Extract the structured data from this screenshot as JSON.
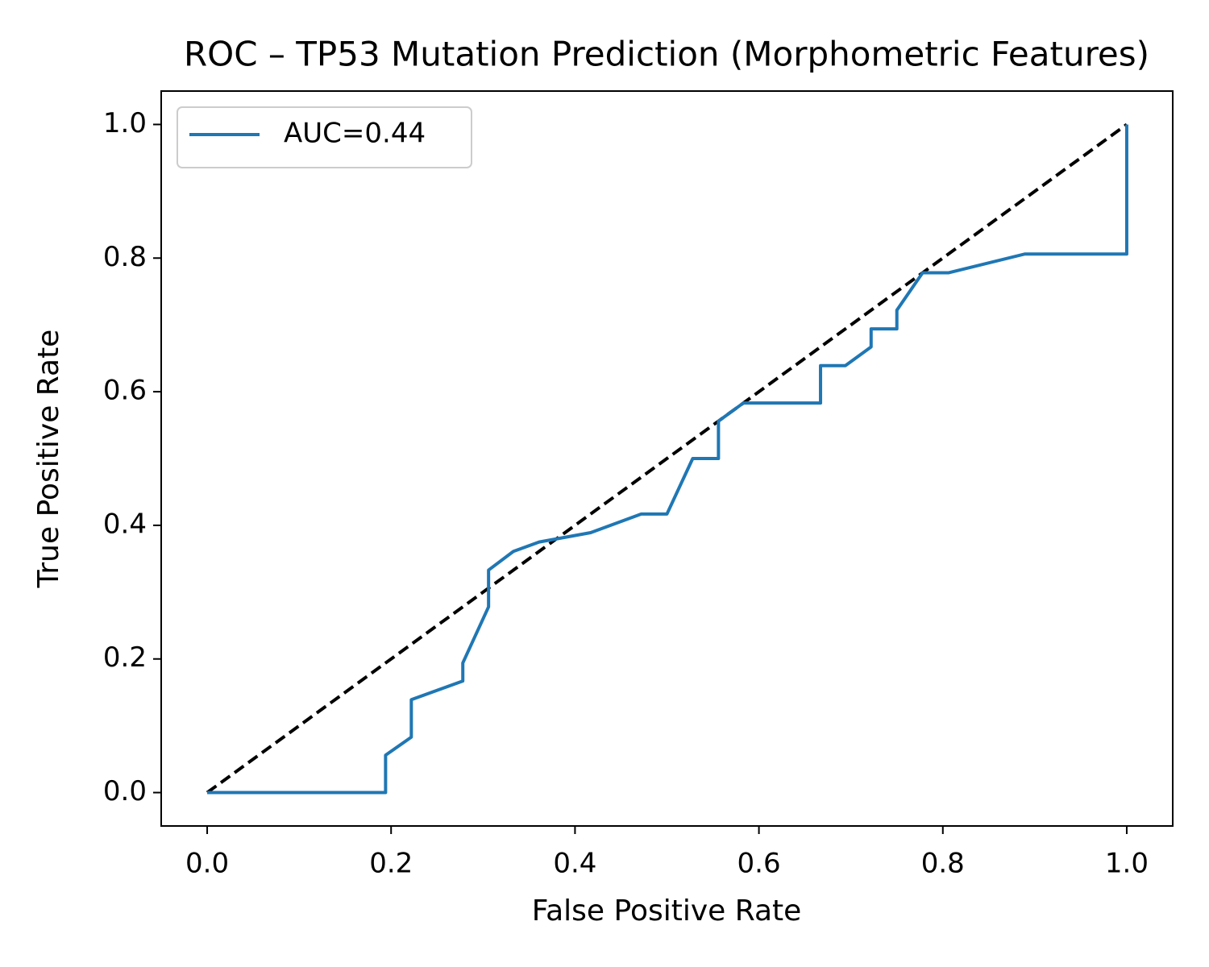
{
  "chart_data": {
    "type": "line",
    "title": "ROC – TP53 Mutation Prediction (Morphometric Features)",
    "x_label": "False Positive Rate",
    "y_label": "True Positive Rate",
    "xlim": [
      -0.05,
      1.05
    ],
    "ylim": [
      -0.05,
      1.05
    ],
    "xticks": [
      {
        "value": 0,
        "label": "0.0"
      },
      0.2,
      0.4,
      0.6,
      0.8,
      {
        "value": 1,
        "label": "1.0"
      }
    ],
    "yticks": [
      {
        "value": 0,
        "label": "0.0"
      },
      0.2,
      0.4,
      0.6,
      0.8,
      {
        "value": 1,
        "label": "1.0"
      }
    ],
    "grid": false,
    "legend": "upper left",
    "series": [
      {
        "name": "AUC=0.44",
        "color": "#1f77b4",
        "x": [
          0,
          0.194,
          0.194,
          0.222,
          0.222,
          0.278,
          0.278,
          0.306,
          0.306,
          0.333,
          0.361,
          0.417,
          0.472,
          0.5,
          0.528,
          0.556,
          0.556,
          0.583,
          0.667,
          0.667,
          0.694,
          0.722,
          0.722,
          0.75,
          0.75,
          0.778,
          0.806,
          0.889,
          1,
          1
        ],
        "values": [
          0,
          0,
          0.056,
          0.083,
          0.139,
          0.167,
          0.194,
          0.278,
          0.333,
          0.361,
          0.375,
          0.389,
          0.417,
          0.417,
          0.5,
          0.5,
          0.556,
          0.583,
          0.583,
          0.639,
          0.639,
          0.667,
          0.694,
          0.694,
          0.722,
          0.778,
          0.778,
          0.806,
          0.806,
          1
        ]
      }
    ],
    "reference_line": {
      "color": "#000000",
      "dashed": true,
      "x": [
        0,
        1
      ],
      "values": [
        0,
        1
      ]
    }
  }
}
